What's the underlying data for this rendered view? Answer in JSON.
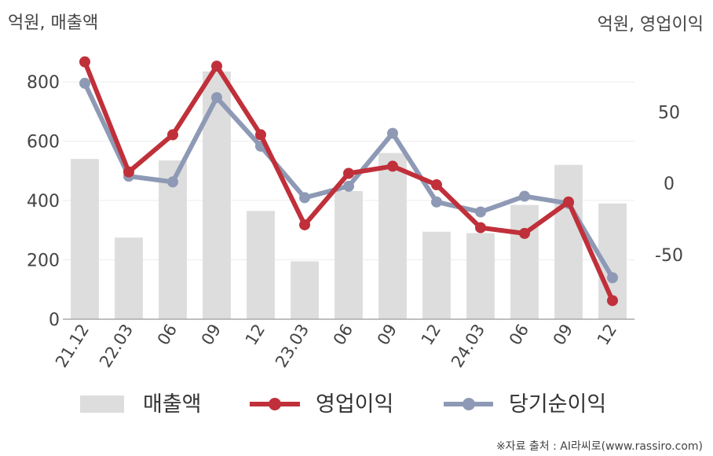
{
  "chart_data": {
    "type": "bar+line",
    "left_unit": "억원, 매출액",
    "right_unit": "억원, 영업이익",
    "categories": [
      "21.12",
      "22.03",
      "06",
      "09",
      "12",
      "23.03",
      "06",
      "09",
      "12",
      "24.03",
      "06",
      "09",
      "12"
    ],
    "left_axis": {
      "ticks": [
        "0",
        "200",
        "400",
        "600",
        "800"
      ],
      "tick_values": [
        0,
        200,
        400,
        600,
        800
      ],
      "ylim": [
        0,
        930
      ]
    },
    "right_axis": {
      "ticks": [
        "50",
        "0",
        "-50"
      ],
      "tick_values": [
        50,
        0,
        -50
      ],
      "ylim": [
        -95,
        98
      ]
    },
    "series": [
      {
        "name": "매출액",
        "kind": "bar",
        "axis": "left",
        "color": "#dddddd",
        "values": [
          540,
          275,
          535,
          835,
          365,
          195,
          432,
          560,
          295,
          290,
          385,
          520,
          390
        ]
      },
      {
        "name": "영업이익",
        "kind": "line",
        "axis": "right",
        "color": "#c0303a",
        "values": [
          85,
          8,
          34,
          82,
          34,
          -29,
          7,
          12,
          -1,
          -31,
          -35,
          -13,
          -82
        ]
      },
      {
        "name": "당기순이익",
        "kind": "line",
        "axis": "right",
        "color": "#8e9ab5",
        "values": [
          70,
          5,
          1,
          60,
          26,
          -10,
          -2,
          35,
          -13,
          -20,
          -9,
          -14,
          -66
        ]
      }
    ],
    "legend": [
      "매출액",
      "영업이익",
      "당기순이익"
    ],
    "legend_position": "bottom",
    "grid": true
  },
  "source_text": "※자료 출처 : AI라씨로(www.rassiro.com)"
}
